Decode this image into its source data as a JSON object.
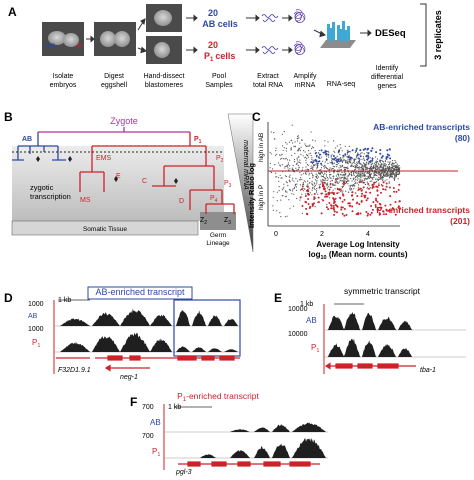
{
  "panels": {
    "A": {
      "label": "A",
      "ab_count": "20",
      "ab_cells": "AB cells",
      "p1_count": "20",
      "p1_cells": "P",
      "p1_sub": "1",
      "p1_tail": "cells",
      "deseq": "DESeq",
      "replicates": "3 replicates",
      "cell_ab": "AB",
      "cell_p1": "P",
      "steps": [
        [
          "Isolate",
          "embryos"
        ],
        [
          "Digest",
          "eggshell"
        ],
        [
          "Hand-dissect",
          "blastomeres"
        ],
        [
          "Pool",
          "Samples"
        ],
        [
          "Extract",
          "total RNA"
        ],
        [
          "Amplify",
          "mRNA"
        ],
        [
          "RNA-seq",
          ""
        ],
        [
          "Identify",
          "differential",
          "genes"
        ]
      ]
    },
    "B": {
      "label": "B",
      "zygote": "Zygote",
      "ab": "AB",
      "p1": "P",
      "p1_sub": "1",
      "ems": "EMS",
      "ms": "MS",
      "e": "E",
      "c": "C",
      "d": "D",
      "p2": "P",
      "p2_sub": "2",
      "p3": "P",
      "p3_sub": "3",
      "p4": "P",
      "p4_sub": "4",
      "z2": "Z",
      "z2_sub": "2",
      "z3": "Z",
      "z3_sub": "3",
      "zygotic1": "zygotic",
      "zygotic2": "transcription",
      "maternal": "maternal mRNA",
      "somatic": "Somatic Tissue",
      "germ1": "Germ",
      "germ2": "Lineage"
    },
    "C": {
      "label": "C",
      "ab_enriched": "AB-enriched transcripts",
      "ab_count": "(80)",
      "p1_enriched_pre": "P",
      "p1_enriched_sub": "1",
      "p1_enriched_post": "-enriched transcripts",
      "p1_count": "(201)",
      "ylabel_main": "Intensity Ratio log",
      "ylabel_high_ab": "high in AB",
      "ylabel_high_p1": "high in P",
      "xlabel1": "Average Log Intensity",
      "xlabel2": "log",
      "xlabel2_sub": "10",
      "xlabel2_post": " (Mean norm. counts)",
      "xticks": [
        "0",
        "2",
        "4"
      ]
    },
    "D": {
      "label": "D",
      "title": "AB-enriched transcript",
      "scale": "1 kb",
      "ab": "AB",
      "p1": "P",
      "p1_sub": "1",
      "max1": "1000",
      "max2": "1000",
      "gene1": "F32D1.9.1",
      "gene2": "neg-1"
    },
    "E": {
      "label": "E",
      "title": "symmetric transcript",
      "scale": "1 kb",
      "ab": "AB",
      "p1": "P",
      "p1_sub": "1",
      "max1": "10000",
      "max2": "10000",
      "gene": "tba-1"
    },
    "F": {
      "label": "F",
      "title_pre": "P",
      "title_sub": "1",
      "title_post": "-enriched transcript",
      "scale": "1 kb",
      "ab": "AB",
      "p1": "P",
      "p1_sub": "1",
      "max1": "700",
      "max2": "700",
      "gene": "pgl-3"
    }
  },
  "colors": {
    "ab_blue": "#2e48a6",
    "p1_red": "#cc2229",
    "zygote_magenta": "#b0339a",
    "track_fill": "#1f1f1f"
  }
}
